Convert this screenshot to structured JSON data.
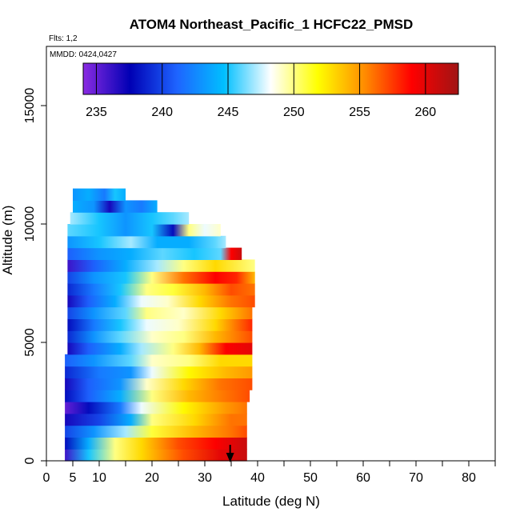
{
  "chart_data": {
    "type": "heatmap",
    "title": "ATOM4 Northeast_Pacific_1 HCFC22_PMSD",
    "flights_label": "Flts: 1,2",
    "dates_label": "MMDD: 0424,0427",
    "xlabel": "Latitude (deg N)",
    "ylabel": "Altitude (m)",
    "xlim": [
      0,
      85
    ],
    "ylim": [
      0,
      17500
    ],
    "x_ticks": [
      0,
      5,
      10,
      20,
      30,
      40,
      50,
      60,
      70,
      80
    ],
    "y_ticks": [
      0,
      5000,
      10000,
      15000
    ],
    "colorbar": {
      "range": [
        234,
        262.5
      ],
      "ticks": [
        235,
        240,
        245,
        250,
        255,
        260
      ],
      "colors": [
        "#8a2be2",
        "#0000b4",
        "#1e64ff",
        "#00bfff",
        "#ffffff",
        "#ffff00",
        "#ff8c00",
        "#ff0000",
        "#a01414"
      ]
    },
    "arrow_marker": {
      "latitude": 34.8
    },
    "rows": [
      {
        "alt": 250,
        "lat_range": [
          3.5,
          38
        ],
        "values": [
          [
            3.5,
            236
          ],
          [
            8,
            245
          ],
          [
            13,
            250
          ],
          [
            18,
            253
          ],
          [
            26,
            257
          ],
          [
            33,
            260
          ],
          [
            38,
            261
          ]
        ]
      },
      {
        "alt": 750,
        "lat_range": [
          3.5,
          38
        ],
        "values": [
          [
            3.5,
            238
          ],
          [
            8,
            244
          ],
          [
            13,
            250
          ],
          [
            18,
            253
          ],
          [
            25,
            257
          ],
          [
            32,
            259
          ],
          [
            38,
            261
          ]
        ]
      },
      {
        "alt": 1250,
        "lat_range": [
          3.5,
          38
        ],
        "values": [
          [
            3.5,
            240
          ],
          [
            9,
            243
          ],
          [
            15,
            247
          ],
          [
            20,
            251
          ],
          [
            28,
            254
          ],
          [
            35,
            256
          ],
          [
            38,
            257
          ]
        ]
      },
      {
        "alt": 1750,
        "lat_range": [
          3.5,
          38
        ],
        "values": [
          [
            3.5,
            237
          ],
          [
            10,
            240
          ],
          [
            16,
            244
          ],
          [
            20,
            250
          ],
          [
            28,
            253
          ],
          [
            35,
            256
          ],
          [
            38,
            256
          ]
        ]
      },
      {
        "alt": 2250,
        "lat_range": [
          3.5,
          38
        ],
        "values": [
          [
            3.5,
            235
          ],
          [
            8,
            238
          ],
          [
            14,
            242
          ],
          [
            18,
            248
          ],
          [
            26,
            252
          ],
          [
            34,
            255
          ],
          [
            38,
            256
          ]
        ]
      },
      {
        "alt": 2750,
        "lat_range": [
          3.5,
          38.5
        ],
        "values": [
          [
            3.5,
            238
          ],
          [
            8,
            241
          ],
          [
            14,
            244
          ],
          [
            20,
            250
          ],
          [
            27,
            254
          ],
          [
            34,
            256
          ],
          [
            38.5,
            257
          ]
        ]
      },
      {
        "alt": 3250,
        "lat_range": [
          3.5,
          39
        ],
        "values": [
          [
            3.5,
            237
          ],
          [
            8,
            241
          ],
          [
            14,
            243
          ],
          [
            19,
            249
          ],
          [
            26,
            253
          ],
          [
            33,
            256
          ],
          [
            39,
            257
          ]
        ]
      },
      {
        "alt": 3750,
        "lat_range": [
          3.5,
          39
        ],
        "values": [
          [
            3.5,
            239
          ],
          [
            10,
            242
          ],
          [
            16,
            243
          ],
          [
            20,
            248
          ],
          [
            27,
            252
          ],
          [
            34,
            254
          ],
          [
            39,
            255
          ]
        ]
      },
      {
        "alt": 4250,
        "lat_range": [
          3.5,
          39
        ],
        "values": [
          [
            3.5,
            241
          ],
          [
            9,
            243
          ],
          [
            16,
            246
          ],
          [
            20,
            249
          ],
          [
            27,
            250
          ],
          [
            33,
            253
          ],
          [
            39,
            253
          ]
        ]
      },
      {
        "alt": 4750,
        "lat_range": [
          4,
          39
        ],
        "values": [
          [
            4,
            237
          ],
          [
            8,
            241
          ],
          [
            14,
            244
          ],
          [
            18,
            247
          ],
          [
            24,
            250
          ],
          [
            29,
            254
          ],
          [
            34,
            259
          ],
          [
            39,
            260
          ]
        ]
      },
      {
        "alt": 5250,
        "lat_range": [
          4,
          39
        ],
        "values": [
          [
            4,
            239
          ],
          [
            9,
            243
          ],
          [
            14,
            246
          ],
          [
            20,
            249
          ],
          [
            26,
            250
          ],
          [
            32,
            254
          ],
          [
            39,
            257
          ]
        ]
      },
      {
        "alt": 5750,
        "lat_range": [
          4,
          39
        ],
        "values": [
          [
            4,
            238
          ],
          [
            9,
            242
          ],
          [
            14,
            245
          ],
          [
            19,
            248
          ],
          [
            25,
            249
          ],
          [
            32,
            253
          ],
          [
            39,
            258
          ]
        ]
      },
      {
        "alt": 6250,
        "lat_range": [
          4,
          39
        ],
        "values": [
          [
            4,
            240
          ],
          [
            9,
            243
          ],
          [
            15,
            246
          ],
          [
            19,
            250
          ],
          [
            26,
            249
          ],
          [
            33,
            253
          ],
          [
            39,
            256
          ]
        ]
      },
      {
        "alt": 6750,
        "lat_range": [
          4,
          39.5
        ],
        "values": [
          [
            4,
            237
          ],
          [
            8,
            241
          ],
          [
            13,
            244
          ],
          [
            18,
            248
          ],
          [
            23,
            249
          ],
          [
            29,
            253
          ],
          [
            35,
            256
          ],
          [
            39.5,
            257
          ]
        ]
      },
      {
        "alt": 7250,
        "lat_range": [
          4,
          39.5
        ],
        "values": [
          [
            4,
            239
          ],
          [
            9,
            242
          ],
          [
            14,
            245
          ],
          [
            19,
            250
          ],
          [
            24,
            251
          ],
          [
            30,
            254
          ],
          [
            35,
            257
          ],
          [
            39.5,
            256
          ]
        ]
      },
      {
        "alt": 7750,
        "lat_range": [
          4,
          39.5
        ],
        "values": [
          [
            4,
            240
          ],
          [
            9,
            243
          ],
          [
            15,
            245
          ],
          [
            20,
            250
          ],
          [
            26,
            256
          ],
          [
            32,
            259
          ],
          [
            36,
            258
          ],
          [
            39.5,
            254
          ]
        ]
      },
      {
        "alt": 8250,
        "lat_range": [
          4,
          39.5
        ],
        "values": [
          [
            4,
            236
          ],
          [
            9,
            241
          ],
          [
            15,
            244
          ],
          [
            21,
            247
          ],
          [
            26,
            250
          ],
          [
            32,
            253
          ],
          [
            39.5,
            250
          ]
        ]
      },
      {
        "alt": 8750,
        "lat_range": [
          4,
          37
        ],
        "values": [
          [
            4,
            241
          ],
          [
            10,
            243
          ],
          [
            16,
            244
          ],
          [
            22,
            246
          ],
          [
            28,
            245
          ],
          [
            33,
            246
          ],
          [
            35,
            259
          ],
          [
            37,
            261
          ]
        ]
      },
      {
        "alt": 9250,
        "lat_range": [
          4,
          34
        ],
        "values": [
          [
            4,
            243
          ],
          [
            10,
            245
          ],
          [
            16,
            247
          ],
          [
            21,
            244
          ],
          [
            27,
            244
          ],
          [
            32,
            246
          ],
          [
            34,
            247
          ]
        ]
      },
      {
        "alt": 9750,
        "lat_range": [
          4,
          33
        ],
        "values": [
          [
            4,
            246
          ],
          [
            10,
            245
          ],
          [
            15,
            243
          ],
          [
            20,
            245
          ],
          [
            24,
            238
          ],
          [
            27,
            250
          ],
          [
            30,
            248
          ],
          [
            33,
            249
          ]
        ]
      },
      {
        "alt": 10250,
        "lat_range": [
          4.5,
          27
        ],
        "values": [
          [
            4.5,
            247
          ],
          [
            10,
            245
          ],
          [
            15,
            243
          ],
          [
            20,
            245
          ],
          [
            24,
            246
          ],
          [
            27,
            247
          ]
        ]
      },
      {
        "alt": 10750,
        "lat_range": [
          5,
          21
        ],
        "values": [
          [
            5,
            244
          ],
          [
            9,
            243
          ],
          [
            12,
            237
          ],
          [
            15,
            243
          ],
          [
            18,
            242
          ],
          [
            21,
            244
          ]
        ]
      },
      {
        "alt": 11250,
        "lat_range": [
          5,
          15
        ],
        "values": [
          [
            5,
            243
          ],
          [
            8,
            244
          ],
          [
            11,
            242
          ],
          [
            13,
            245
          ],
          [
            15,
            244
          ]
        ]
      }
    ]
  }
}
